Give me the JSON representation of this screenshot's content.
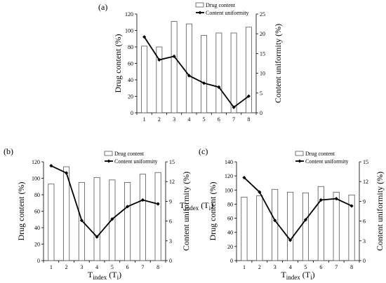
{
  "chart_data": [
    {
      "type": "bar",
      "panel_label": "(a)",
      "categories": [
        "1",
        "2",
        "3",
        "4",
        "5",
        "6",
        "7",
        "8"
      ],
      "xlabel": {
        "main": "T",
        "sub": "index",
        "paren_open": " (T",
        "paren_sub": "i",
        "paren_close": ")"
      },
      "ylabel_left": "Drug content (%)",
      "ylabel_right": "Content uniformity (%)",
      "ylim_left": [
        0,
        120
      ],
      "yticks_left": [
        0,
        20,
        40,
        60,
        80,
        100,
        120
      ],
      "ylim_right": [
        0,
        25
      ],
      "yticks_right": [
        0,
        5,
        10,
        15,
        20,
        25
      ],
      "legend_position": "top-right",
      "series": [
        {
          "name": "Drug content",
          "kind": "bar",
          "axis": "left",
          "values": [
            81,
            80,
            111,
            108,
            94,
            97,
            97,
            104
          ]
        },
        {
          "name": "Content uniformity",
          "kind": "line",
          "axis": "right",
          "values": [
            19.2,
            13.4,
            14.3,
            9.4,
            7.5,
            6.5,
            1.4,
            4.2
          ]
        }
      ]
    },
    {
      "type": "bar",
      "panel_label": "(b)",
      "categories": [
        "1",
        "2",
        "3",
        "4",
        "5",
        "6",
        "7",
        "8"
      ],
      "xlabel": {
        "main": "T",
        "sub": "index",
        "paren_open": " (T",
        "paren_sub": "i",
        "paren_close": ")"
      },
      "ylabel_left": "Drug content (%)",
      "ylabel_right": "Content uniformity (%)",
      "ylim_left": [
        0,
        120
      ],
      "yticks_left": [
        0,
        20,
        40,
        60,
        80,
        100,
        120
      ],
      "ylim_right": [
        0,
        15
      ],
      "yticks_right": [
        0,
        3,
        6,
        9,
        12,
        15
      ],
      "legend_position": "top-right",
      "series": [
        {
          "name": "Drug content",
          "kind": "bar",
          "axis": "left",
          "values": [
            93,
            114,
            95,
            101,
            98,
            95,
            105,
            107
          ]
        },
        {
          "name": "Content uniformity",
          "kind": "line",
          "axis": "right",
          "values": [
            14.4,
            13.3,
            6.1,
            3.6,
            6.3,
            8.2,
            9.2,
            8.6
          ]
        }
      ]
    },
    {
      "type": "bar",
      "panel_label": "(c)",
      "categories": [
        "1",
        "2",
        "3",
        "4",
        "5",
        "6",
        "7",
        "8"
      ],
      "xlabel": {
        "main": "T",
        "sub": "index",
        "paren_open": " (T",
        "paren_sub": "i",
        "paren_close": ")"
      },
      "ylabel_left": "Drug content (%)",
      "ylabel_right": "Content uniformity (%)",
      "ylim_left": [
        0,
        140
      ],
      "yticks_left": [
        0,
        20,
        40,
        60,
        80,
        100,
        120,
        140
      ],
      "ylim_right": [
        0,
        15
      ],
      "yticks_right": [
        0,
        3,
        6,
        9,
        12,
        15
      ],
      "legend_position": "top-right",
      "series": [
        {
          "name": "Drug content",
          "kind": "bar",
          "axis": "left",
          "values": [
            90,
            92,
            101,
            97,
            96,
            105,
            97,
            93
          ]
        },
        {
          "name": "Content uniformity",
          "kind": "line",
          "axis": "right",
          "values": [
            12.6,
            10.4,
            6.1,
            3.1,
            6.2,
            9.2,
            9.4,
            8.3
          ]
        }
      ]
    }
  ]
}
